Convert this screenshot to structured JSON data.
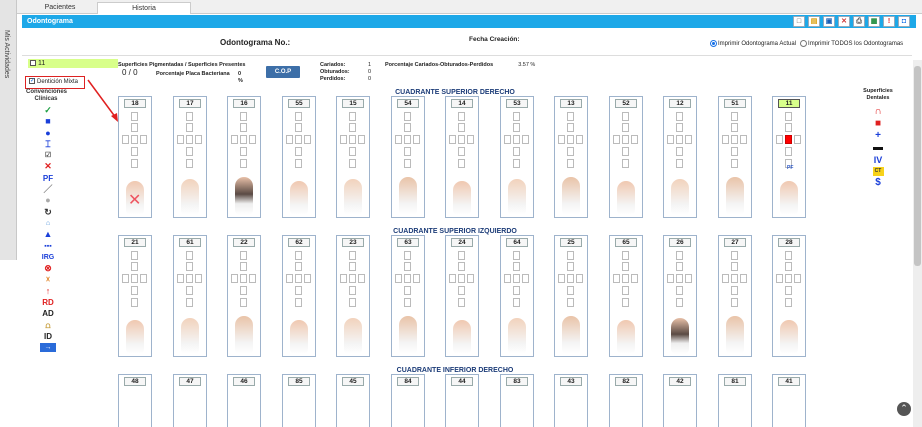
{
  "sidebar": {
    "label": "Mis Actividades"
  },
  "tabs": [
    {
      "label": "Pacientes"
    },
    {
      "label": "Historia"
    }
  ],
  "panel": {
    "title": "Odontograma"
  },
  "header": {
    "title": "Odontograma No.:",
    "fecha_label": "Fecha Creación:",
    "radio_actual": "Imprimir Odontograma Actual",
    "radio_todos": "Imprimir TODOS los Odontogramas"
  },
  "selected_tooth": {
    "label": "11"
  },
  "dentition": {
    "label": "Dentición Mixta"
  },
  "conventions": {
    "label": "Convenciones Clínicas"
  },
  "stats": {
    "surfaces_label": "Superficies Pigmentadas / Superficies Presentes",
    "surfaces_value": "0 / 0",
    "placa_label": "Porcentaje Placa Bacteriana",
    "placa_value": "0 %",
    "cop_button": "C.O.P",
    "cariados_label": "Cariados:",
    "cariados_value": "1",
    "obturados_label": "Obturados:",
    "obturados_value": "0",
    "perdidos_label": "Perdidos:",
    "perdidos_value": "0",
    "pct_label": "Porcentaje Cariados-Obturados-Perdidos",
    "pct_value": "3.57 %"
  },
  "quadrants": [
    {
      "title": "CUADRANTE SUPERIOR DERECHO",
      "teeth": [
        "18",
        "17",
        "16",
        "55",
        "15",
        "54",
        "14",
        "53",
        "13",
        "52",
        "12",
        "51",
        "11"
      ]
    },
    {
      "title": "CUADRANTE SUPERIOR IZQUIERDO",
      "teeth": [
        "21",
        "61",
        "22",
        "62",
        "23",
        "63",
        "24",
        "64",
        "25",
        "65",
        "26",
        "27",
        "28"
      ]
    },
    {
      "title": "CUADRANTE INFERIOR DERECHO",
      "teeth": [
        "48",
        "47",
        "46",
        "85",
        "45",
        "84",
        "44",
        "83",
        "43",
        "82",
        "42",
        "81",
        "41"
      ]
    }
  ],
  "tooth11_mark": "PF",
  "right_panel": {
    "label": "Superficies Dentales",
    "iv": "IV",
    "ct": "CT",
    "dollar": "$"
  },
  "left_icon_text": {
    "pf": "PF",
    "irg": "IRG",
    "rd": "RD",
    "ad": "AD",
    "id": "ID"
  }
}
